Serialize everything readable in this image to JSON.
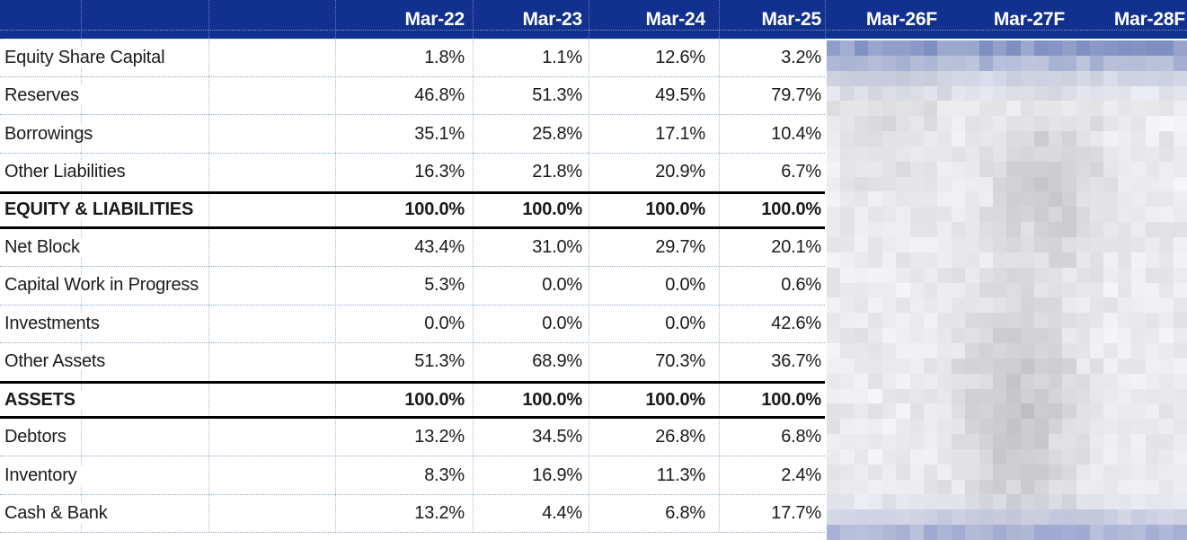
{
  "chart_data": {
    "type": "table",
    "columns": [
      "Mar-22",
      "Mar-23",
      "Mar-24",
      "Mar-25",
      "Mar-26F",
      "Mar-27F",
      "Mar-28F"
    ],
    "redacted_columns": [
      "Mar-26F",
      "Mar-27F",
      "Mar-28F"
    ],
    "rows": [
      {
        "label": "Equity Share Capital",
        "style": "normal",
        "values": [
          "1.8%",
          "1.1%",
          "12.6%",
          "3.2%"
        ]
      },
      {
        "label": "Reserves",
        "style": "normal",
        "values": [
          "46.8%",
          "51.3%",
          "49.5%",
          "79.7%"
        ]
      },
      {
        "label": "Borrowings",
        "style": "normal",
        "values": [
          "35.1%",
          "25.8%",
          "17.1%",
          "10.4%"
        ]
      },
      {
        "label": "Other Liabilities",
        "style": "normal",
        "values": [
          "16.3%",
          "21.8%",
          "20.9%",
          "6.7%"
        ]
      },
      {
        "label": "EQUITY & LIABILITIES",
        "style": "total",
        "values": [
          "100.0%",
          "100.0%",
          "100.0%",
          "100.0%"
        ]
      },
      {
        "label": "Net Block",
        "style": "normal",
        "values": [
          "43.4%",
          "31.0%",
          "29.7%",
          "20.1%"
        ]
      },
      {
        "label": "Capital Work in Progress",
        "style": "normal",
        "values": [
          "5.3%",
          "0.0%",
          "0.0%",
          "0.6%"
        ]
      },
      {
        "label": "Investments",
        "style": "normal",
        "values": [
          "0.0%",
          "0.0%",
          "0.0%",
          "42.6%"
        ]
      },
      {
        "label": "Other Assets",
        "style": "normal",
        "values": [
          "51.3%",
          "68.9%",
          "70.3%",
          "36.7%"
        ]
      },
      {
        "label": "ASSETS",
        "style": "total",
        "values": [
          "100.0%",
          "100.0%",
          "100.0%",
          "100.0%"
        ]
      },
      {
        "label": "Debtors",
        "style": "normal",
        "values": [
          "13.2%",
          "34.5%",
          "26.8%",
          "6.8%"
        ]
      },
      {
        "label": "Inventory",
        "style": "normal",
        "values": [
          "8.3%",
          "16.9%",
          "11.3%",
          "2.4%"
        ]
      },
      {
        "label": "Cash & Bank",
        "style": "normal",
        "values": [
          "13.2%",
          "4.4%",
          "6.8%",
          "17.7%"
        ]
      }
    ]
  },
  "colors": {
    "header_bg": "#12308D",
    "header_text": "#FFFFFF",
    "grid_dot": "#8CA5CC",
    "total_border": "#000000",
    "body_text": "#1A1A1A",
    "mosaic_blue_top": "#7E8FC2",
    "mosaic_blue_bottom": "#9AA5CF",
    "mosaic_base_gray": "#E9EAEC"
  }
}
